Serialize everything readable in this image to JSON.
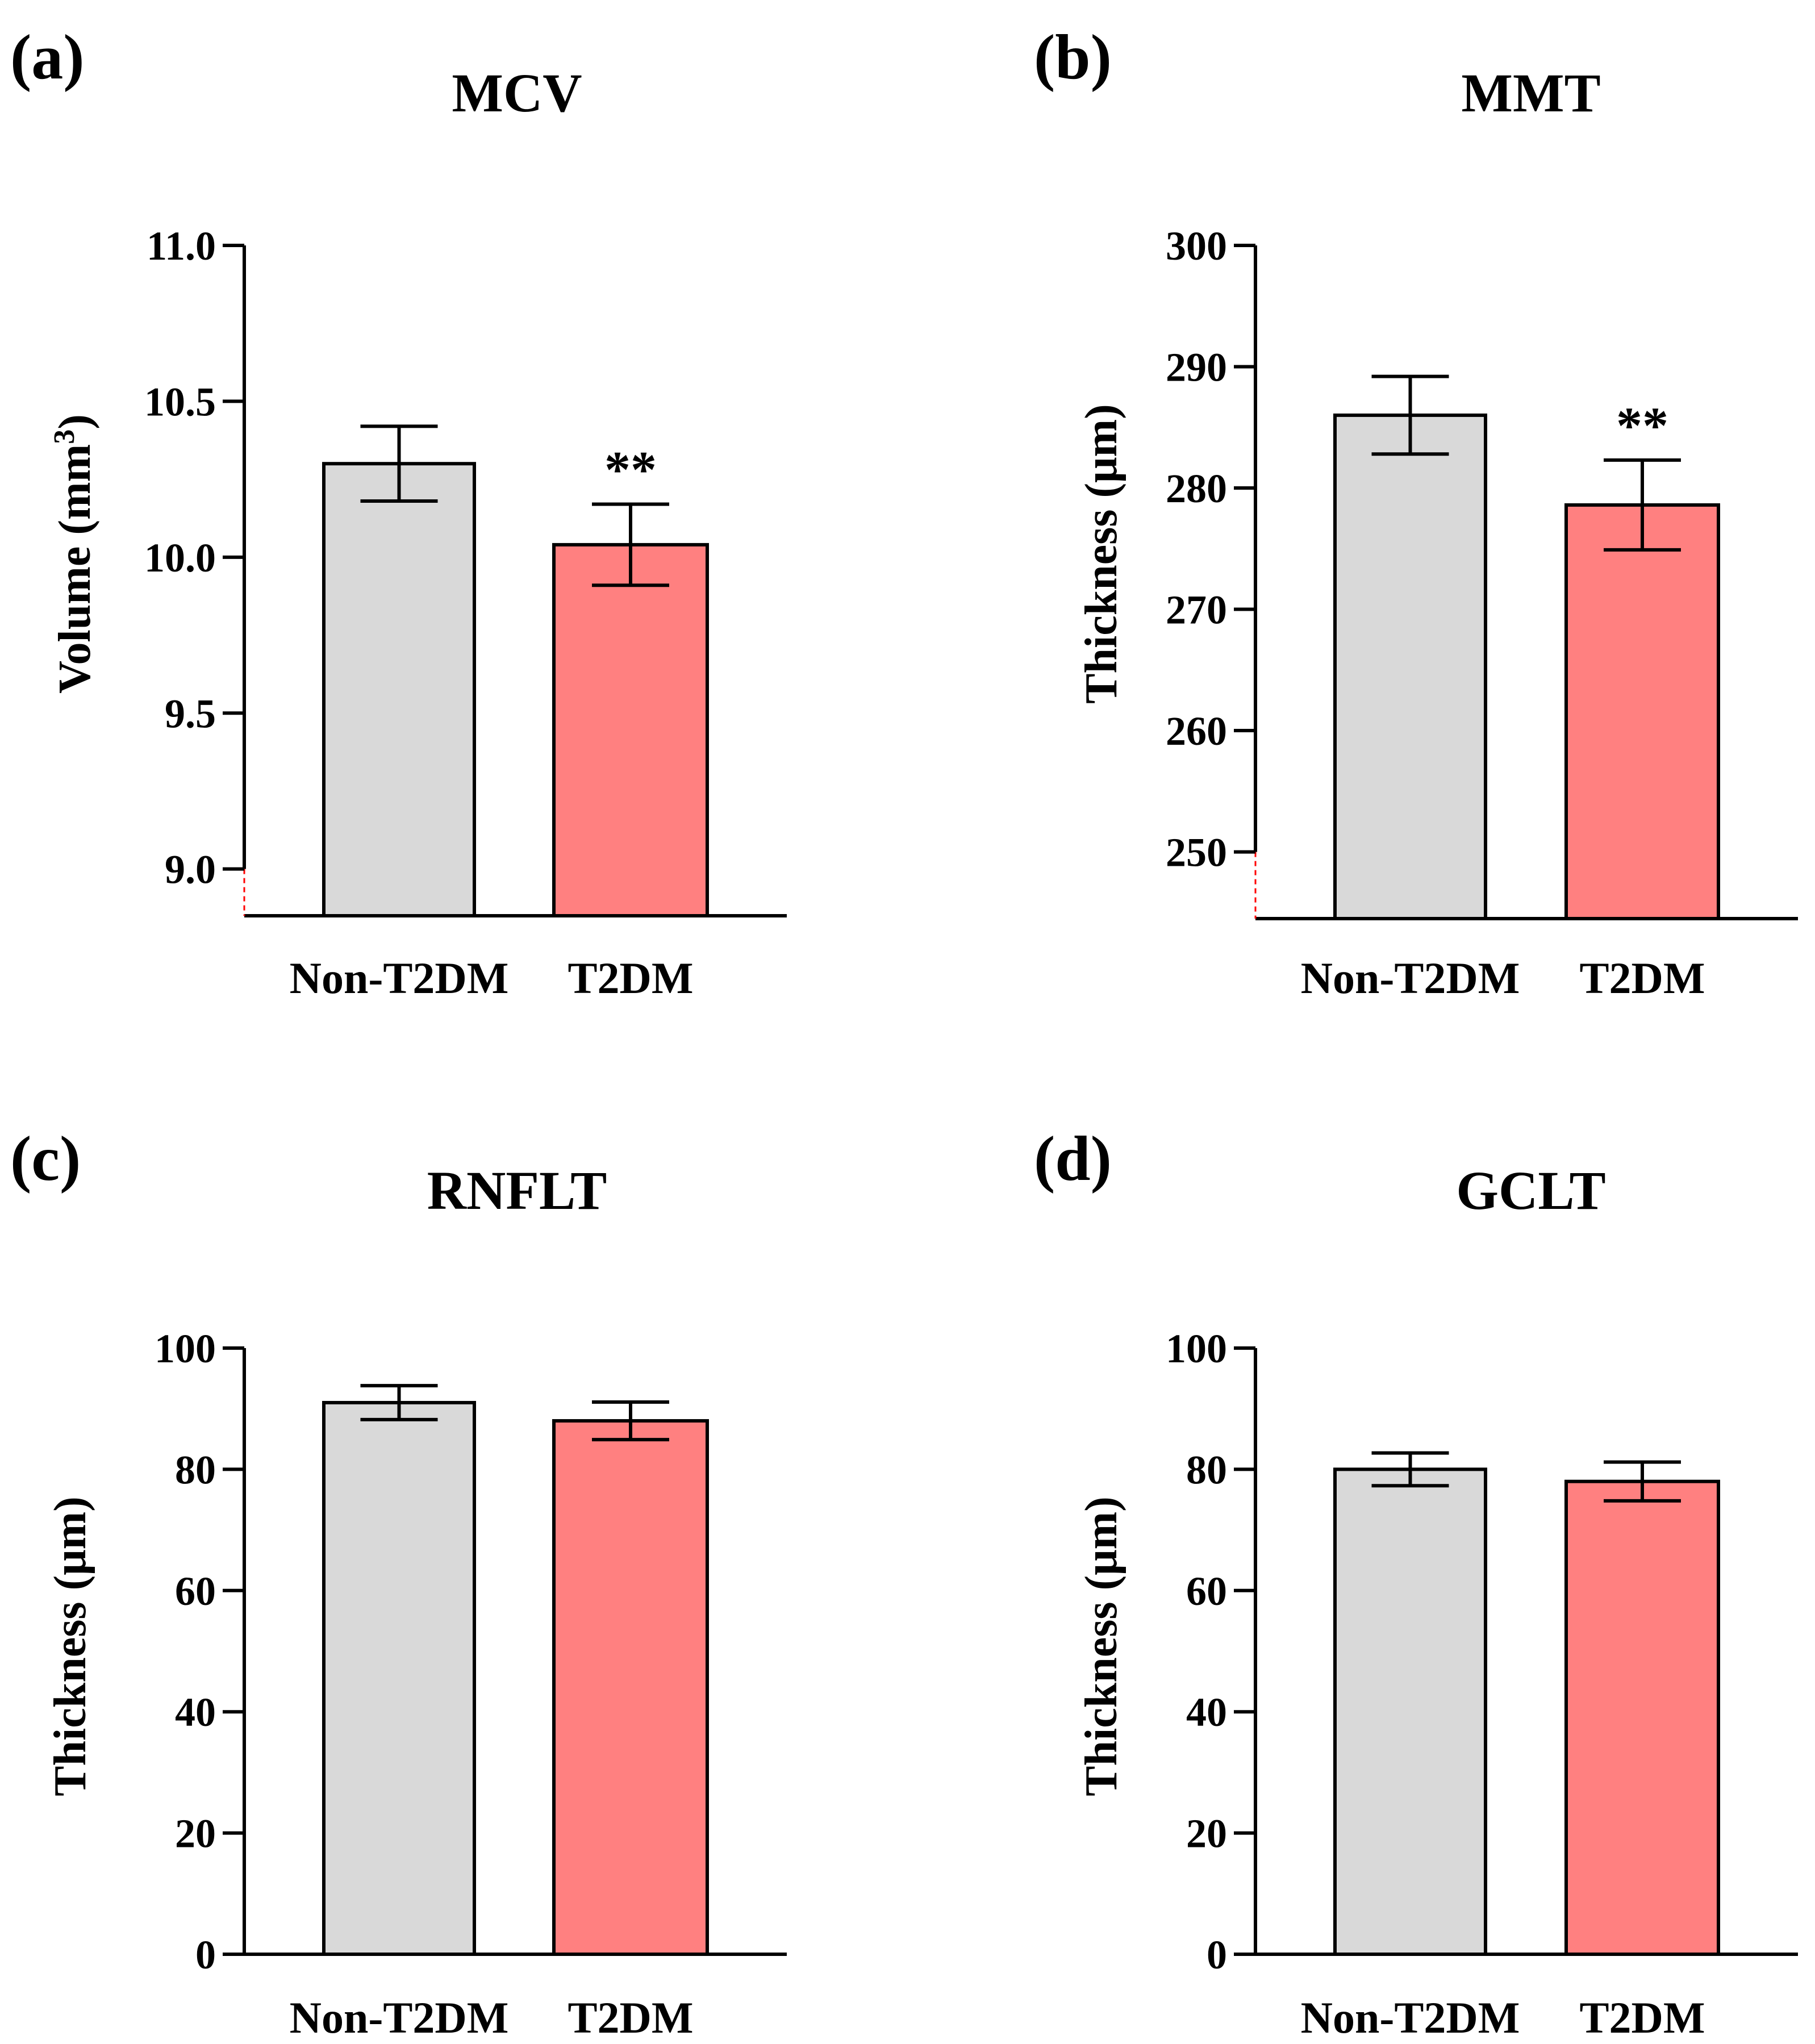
{
  "chart_data": [
    {
      "type": "bar",
      "panel": "(a)",
      "title": "MCV",
      "ylabel": "Volume (mm³)",
      "categories": [
        "Non-T2DM",
        "T2DM"
      ],
      "values": [
        10.3,
        10.04
      ],
      "errors": [
        0.12,
        0.13
      ],
      "significance": [
        "",
        "**"
      ],
      "colors": [
        "#d9d9d9",
        "#ff8080"
      ],
      "ylim": [
        8.85,
        11.0
      ],
      "yticks": [
        9.0,
        9.5,
        10.0,
        10.5,
        11.0
      ],
      "ytick_labels": [
        "9.0",
        "9.5",
        "10.0",
        "10.5",
        "11.0"
      ],
      "axis_break": true
    },
    {
      "type": "bar",
      "panel": "(b)",
      "title": "MMT",
      "ylabel": "Thickness (μm)",
      "categories": [
        "Non-T2DM",
        "T2DM"
      ],
      "values": [
        286,
        278.6
      ],
      "errors": [
        3.2,
        3.7
      ],
      "significance": [
        "",
        "**"
      ],
      "colors": [
        "#d9d9d9",
        "#ff8080"
      ],
      "ylim": [
        244.5,
        300
      ],
      "yticks": [
        250,
        260,
        270,
        280,
        290,
        300
      ],
      "ytick_labels": [
        "250",
        "260",
        "270",
        "280",
        "290",
        "300"
      ],
      "axis_break": true
    },
    {
      "type": "bar",
      "panel": "(c)",
      "title": "RNFLT",
      "ylabel": "Thickness (μm)",
      "categories": [
        "Non-T2DM",
        "T2DM"
      ],
      "values": [
        91,
        88
      ],
      "errors": [
        2.8,
        3.1
      ],
      "significance": [
        "",
        ""
      ],
      "colors": [
        "#d9d9d9",
        "#ff8080"
      ],
      "ylim": [
        0,
        100
      ],
      "yticks": [
        0,
        20,
        40,
        60,
        80,
        100
      ],
      "ytick_labels": [
        "0",
        "20",
        "40",
        "60",
        "80",
        "100"
      ],
      "axis_break": false
    },
    {
      "type": "bar",
      "panel": "(d)",
      "title": "GCLT",
      "ylabel": "Thickness (μm)",
      "categories": [
        "Non-T2DM",
        "T2DM"
      ],
      "values": [
        80,
        78
      ],
      "errors": [
        2.7,
        3.2
      ],
      "significance": [
        "",
        ""
      ],
      "colors": [
        "#d9d9d9",
        "#ff8080"
      ],
      "ylim": [
        0,
        100
      ],
      "yticks": [
        0,
        20,
        40,
        60,
        80,
        100
      ],
      "ytick_labels": [
        "0",
        "20",
        "40",
        "60",
        "80",
        "100"
      ],
      "axis_break": false
    }
  ]
}
